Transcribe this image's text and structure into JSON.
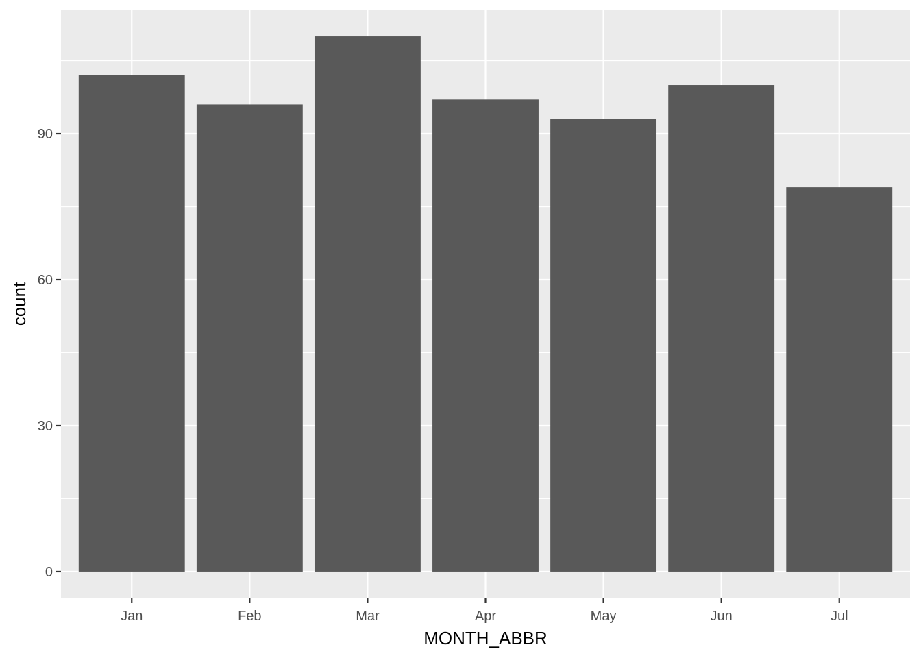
{
  "chart_data": {
    "type": "bar",
    "title": "",
    "xlabel": "MONTH_ABBR",
    "ylabel": "count",
    "categories": [
      "Jan",
      "Feb",
      "Mar",
      "Apr",
      "May",
      "Jun",
      "Jul"
    ],
    "values": [
      102,
      96,
      110,
      97,
      93,
      100,
      79
    ],
    "ylim": [
      -5.5,
      115.5
    ],
    "yticks": [
      0,
      30,
      60,
      90
    ],
    "yticks_minor": [
      15,
      45,
      75,
      105
    ],
    "yticks_labels": [
      "0",
      "30",
      "60",
      "90"
    ],
    "grid": true,
    "legend": "none",
    "colors": {
      "bar": "#595959",
      "panel_background": "#EBEBEB",
      "grid_line": "#FFFFFF",
      "tick_mark": "#333333"
    }
  }
}
